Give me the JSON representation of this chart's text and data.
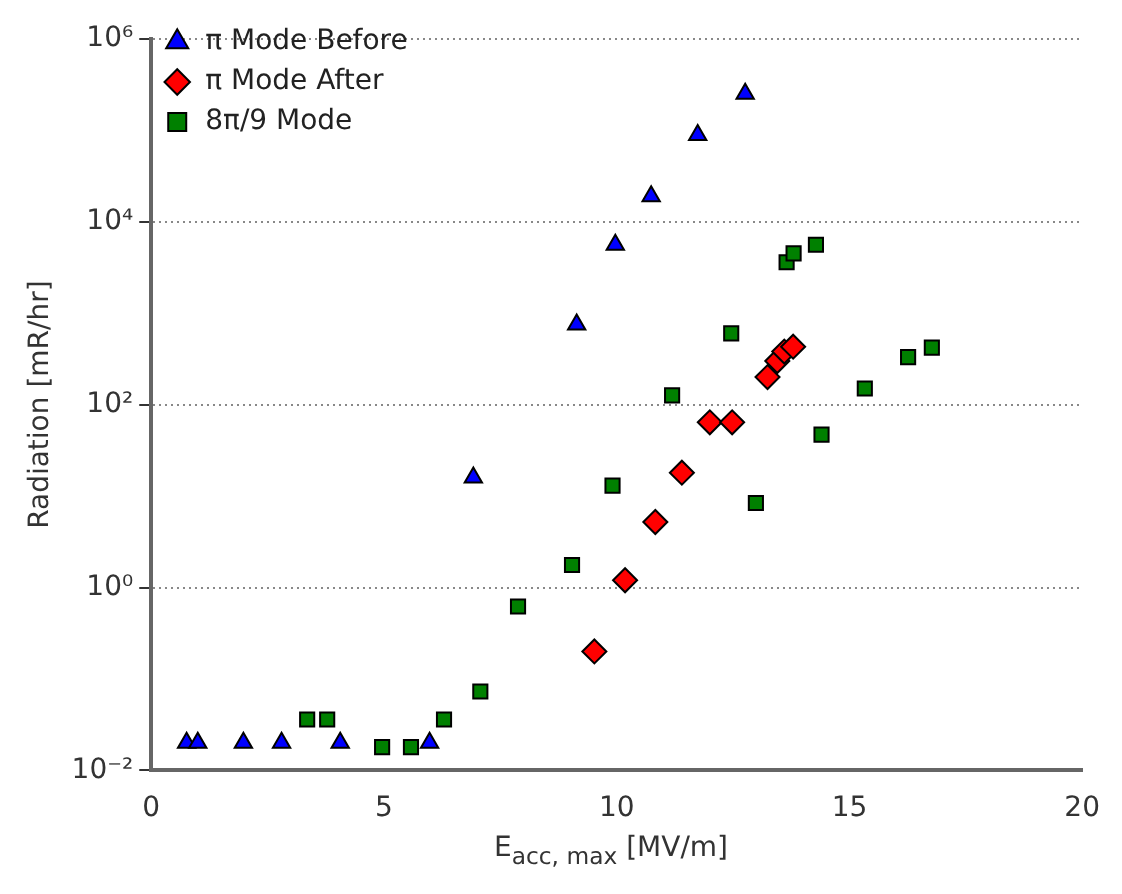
{
  "chart_data": {
    "type": "scatter",
    "xlabel": "E$_{acc, max}$ [MV/m]",
    "ylabel": "Radiation [mR/hr]",
    "log": "y",
    "grid": "y",
    "legend": "top left",
    "xlim": [
      0,
      20
    ],
    "xticks": [
      0,
      5,
      10,
      15,
      20
    ],
    "ylim": [
      0.01,
      1000000
    ],
    "yticks": [
      {
        "value": 0.01,
        "label": "10⁻²"
      },
      {
        "value": 1,
        "label": "10⁰"
      },
      {
        "value": 100,
        "label": "10²"
      },
      {
        "value": 10000,
        "label": "10⁴"
      },
      {
        "value": 1000000,
        "label": "10⁶"
      }
    ],
    "series": [
      {
        "name": "π Mode Before",
        "color": "#0000ff",
        "marker": "triangle",
        "x": [
          0.76,
          1.0,
          1.98,
          2.8,
          4.06,
          5.98,
          6.92,
          9.14,
          9.97,
          10.74,
          11.74,
          12.76
        ],
        "values": [
          0.02,
          0.02,
          0.02,
          0.02,
          0.02,
          0.02,
          16,
          750,
          5600,
          19000,
          89000,
          250000
        ]
      },
      {
        "name": "π Mode After",
        "color": "#ff0000",
        "marker": "diamond",
        "x": [
          9.52,
          10.18,
          10.83,
          11.4,
          12.0,
          12.48,
          13.24,
          13.45,
          13.6,
          13.79
        ],
        "values": [
          0.2,
          1.2,
          5.2,
          18,
          64,
          64,
          200,
          300,
          380,
          430
        ]
      },
      {
        "name": "8π/9 Mode",
        "color": "#008000",
        "marker": "square",
        "x": [
          3.35,
          3.78,
          4.96,
          5.58,
          6.29,
          7.07,
          7.88,
          9.04,
          9.91,
          11.19,
          12.46,
          12.99,
          13.65,
          13.8,
          14.28,
          14.4,
          15.33,
          16.26,
          16.77
        ],
        "values": [
          0.036,
          0.036,
          0.018,
          0.018,
          0.036,
          0.073,
          0.62,
          1.76,
          13,
          126,
          600,
          8.4,
          3600,
          4500,
          5600,
          47,
          150,
          330,
          420
        ]
      }
    ]
  }
}
